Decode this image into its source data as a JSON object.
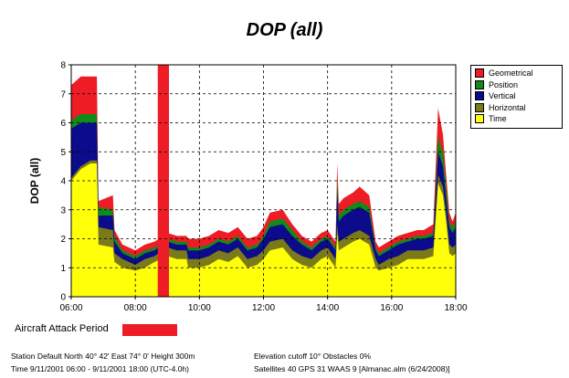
{
  "colors": {
    "geometrical": "#ee1c24",
    "position": "#118a1a",
    "vertical": "#0b0b8c",
    "horizontal": "#7a7a1a",
    "time": "#ffff0a",
    "attack": "#ee1c24"
  },
  "chart_data": {
    "type": "area",
    "title": "DOP (all)",
    "xlabel": "",
    "ylabel": "DOP (all)",
    "xlim": [
      6,
      18
    ],
    "ylim": [
      0,
      8
    ],
    "grid": true,
    "legend_position": "top-right",
    "x_ticks": [
      {
        "value": 6,
        "label": "06:00"
      },
      {
        "value": 8,
        "label": "08:00"
      },
      {
        "value": 10,
        "label": "10:00"
      },
      {
        "value": 12,
        "label": "12:00"
      },
      {
        "value": 14,
        "label": "14:00"
      },
      {
        "value": 16,
        "label": "16:00"
      },
      {
        "value": 18,
        "label": "18:00"
      }
    ],
    "y_ticks": [
      0,
      1,
      2,
      3,
      4,
      5,
      6,
      7,
      8
    ],
    "x": [
      6.0,
      6.3,
      6.6,
      6.8,
      6.85,
      7.3,
      7.35,
      7.6,
      8.0,
      8.3,
      8.6,
      9.0,
      9.3,
      9.6,
      9.65,
      10.0,
      10.3,
      10.6,
      10.9,
      11.2,
      11.5,
      11.8,
      12.0,
      12.2,
      12.6,
      12.9,
      13.2,
      13.5,
      13.8,
      14.0,
      14.25,
      14.3,
      14.35,
      14.5,
      14.8,
      15.0,
      15.3,
      15.5,
      15.6,
      15.9,
      16.2,
      16.5,
      16.8,
      17.0,
      17.3,
      17.45,
      17.6,
      17.7,
      17.8,
      17.9,
      18.0
    ],
    "series": [
      {
        "name": "Time",
        "values": [
          4.0,
          4.4,
          4.6,
          4.6,
          1.8,
          1.7,
          1.2,
          1.0,
          0.9,
          1.0,
          1.2,
          1.4,
          1.3,
          1.3,
          1.0,
          1.0,
          1.1,
          1.3,
          1.2,
          1.4,
          1.0,
          1.1,
          1.3,
          1.6,
          1.7,
          1.3,
          1.1,
          1.0,
          1.3,
          1.4,
          1.0,
          2.2,
          1.6,
          1.7,
          1.9,
          2.0,
          1.8,
          1.0,
          0.9,
          1.0,
          1.1,
          1.3,
          1.3,
          1.3,
          1.4,
          3.9,
          3.5,
          2.6,
          1.5,
          1.4,
          1.5
        ]
      },
      {
        "name": "Horizontal",
        "values": [
          4.1,
          4.5,
          4.7,
          4.7,
          2.4,
          2.3,
          1.5,
          1.3,
          1.1,
          1.3,
          1.4,
          1.7,
          1.6,
          1.6,
          1.3,
          1.3,
          1.4,
          1.6,
          1.5,
          1.7,
          1.3,
          1.4,
          1.6,
          1.9,
          2.0,
          1.6,
          1.4,
          1.3,
          1.6,
          1.7,
          1.3,
          2.5,
          1.9,
          2.0,
          2.2,
          2.3,
          2.1,
          1.3,
          1.1,
          1.3,
          1.4,
          1.6,
          1.6,
          1.6,
          1.7,
          4.2,
          3.8,
          2.9,
          1.8,
          1.7,
          1.8
        ]
      },
      {
        "name": "Vertical",
        "values": [
          5.8,
          6.0,
          6.0,
          6.0,
          2.8,
          2.8,
          1.9,
          1.5,
          1.3,
          1.5,
          1.6,
          1.9,
          1.8,
          1.8,
          1.6,
          1.6,
          1.7,
          1.9,
          1.8,
          2.0,
          1.6,
          1.7,
          2.0,
          2.4,
          2.5,
          2.1,
          1.8,
          1.6,
          1.9,
          2.0,
          1.6,
          3.7,
          2.6,
          2.8,
          3.0,
          3.1,
          2.9,
          1.6,
          1.4,
          1.6,
          1.8,
          1.9,
          2.0,
          2.0,
          2.1,
          5.0,
          4.5,
          3.4,
          2.4,
          2.2,
          2.4
        ]
      },
      {
        "name": "Position",
        "values": [
          6.1,
          6.3,
          6.3,
          6.3,
          3.1,
          3.0,
          2.1,
          1.6,
          1.4,
          1.6,
          1.7,
          2.0,
          1.9,
          1.9,
          1.7,
          1.7,
          1.8,
          2.0,
          1.9,
          2.1,
          1.7,
          1.8,
          2.1,
          2.6,
          2.7,
          2.3,
          1.9,
          1.7,
          2.0,
          2.1,
          1.7,
          4.1,
          2.8,
          3.0,
          3.2,
          3.3,
          3.1,
          1.7,
          1.5,
          1.7,
          1.9,
          2.0,
          2.1,
          2.1,
          2.2,
          5.5,
          5.0,
          3.8,
          2.6,
          2.4,
          2.6
        ]
      },
      {
        "name": "Geometrical",
        "values": [
          7.3,
          7.6,
          7.6,
          7.6,
          3.3,
          3.5,
          2.3,
          1.8,
          1.6,
          1.8,
          1.9,
          2.2,
          2.1,
          2.1,
          2.0,
          2.0,
          2.1,
          2.3,
          2.2,
          2.4,
          2.0,
          2.1,
          2.4,
          2.9,
          3.0,
          2.5,
          2.1,
          1.9,
          2.2,
          2.3,
          1.9,
          4.6,
          3.2,
          3.4,
          3.6,
          3.8,
          3.5,
          1.9,
          1.7,
          1.9,
          2.1,
          2.2,
          2.3,
          2.3,
          2.5,
          6.5,
          5.6,
          4.2,
          2.9,
          2.6,
          2.9
        ]
      }
    ],
    "spans": [
      {
        "x_start": 8.7,
        "x_end": 9.05,
        "y_max": 8
      }
    ]
  },
  "legend": [
    {
      "label": "Geometrical",
      "color": "#ee1c24"
    },
    {
      "label": "Position",
      "color": "#118a1a"
    },
    {
      "label": "Vertical",
      "color": "#0b0b8c"
    },
    {
      "label": "Horizontal",
      "color": "#7a7a1a"
    },
    {
      "label": "Time",
      "color": "#ffff0a"
    }
  ],
  "attack_label": "Aircraft Attack Period",
  "footer": {
    "station": "Station Default  North 40° 42'   East 74° 0'   Height 300m",
    "time": "Time 9/11/2001 06:00 -  9/11/2001 18:00 (UTC-4.0h)",
    "elevation": "Elevation cutoff 10°  Obstacles 0%",
    "satellites": "Satellites 40   GPS 31   WAAS 9   [Almanac.alm (6/24/2008)]"
  }
}
